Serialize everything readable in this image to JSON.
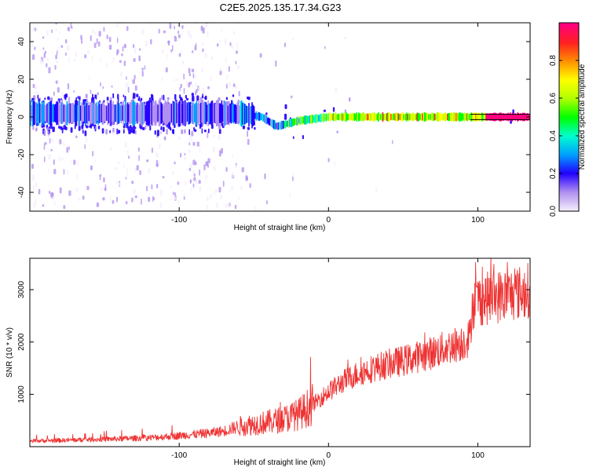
{
  "title": "C2E5.2025.135.17.34.G23",
  "chart_data": [
    {
      "type": "heatmap",
      "xlabel": "Height of straight line (km)",
      "ylabel": "Frequency (Hz)",
      "xlim": [
        -200,
        135
      ],
      "ylim": [
        -50,
        50
      ],
      "xticks": [
        -100,
        0,
        100
      ],
      "xtick_labels": [
        "-100",
        "0",
        "100"
      ],
      "yticks": [
        -40,
        -20,
        0,
        20,
        40
      ],
      "ytick_labels": [
        "-40",
        "-20",
        "0",
        "20",
        "40"
      ],
      "colorbar": {
        "label": "Normalized spectral amplitude",
        "range": [
          0,
          1
        ],
        "ticks": [
          0.0,
          0.2,
          0.4,
          0.6,
          0.8
        ],
        "tick_labels": [
          "0.0",
          "0.2",
          "0.4",
          "0.6",
          "0.8"
        ],
        "colors": [
          "#f4eefc",
          "#b08ff0",
          "#2200ff",
          "#00a0ff",
          "#00ffd0",
          "#00ff00",
          "#b0ff00",
          "#ffff00",
          "#ff9000",
          "#ff2020",
          "#ff0080"
        ]
      },
      "peak_track": {
        "x": [
          -200,
          -160,
          -120,
          -80,
          -60,
          -45,
          -35,
          -20,
          -10,
          0,
          20,
          50,
          80,
          100,
          135
        ],
        "y": [
          2,
          2,
          2,
          2,
          2,
          0,
          -5,
          -2,
          -1,
          0,
          0,
          0,
          0,
          0,
          0
        ]
      }
    },
    {
      "type": "line",
      "xlabel": "Height of straight line (km)",
      "ylabel": "SNR (10 * v/v)",
      "xlim": [
        -200,
        135
      ],
      "ylim": [
        0,
        3600
      ],
      "xticks": [
        -100,
        0,
        100
      ],
      "xtick_labels": [
        "-100",
        "0",
        "100"
      ],
      "yticks": [
        1000,
        2000,
        3000
      ],
      "ytick_labels": [
        "1000",
        "2000",
        "3000"
      ],
      "color": "#ee3333",
      "x": [
        -200,
        -180,
        -160,
        -140,
        -120,
        -100,
        -80,
        -70,
        -60,
        -50,
        -40,
        -30,
        -20,
        -10,
        0,
        10,
        20,
        30,
        40,
        50,
        60,
        70,
        80,
        90,
        95,
        96,
        100,
        110,
        120,
        130,
        135
      ],
      "y": [
        110,
        120,
        135,
        150,
        170,
        210,
        260,
        300,
        390,
        430,
        470,
        530,
        620,
        820,
        1050,
        1250,
        1400,
        1500,
        1580,
        1640,
        1720,
        1800,
        1900,
        2000,
        2100,
        2700,
        2800,
        2850,
        2900,
        2950,
        3000
      ]
    }
  ]
}
